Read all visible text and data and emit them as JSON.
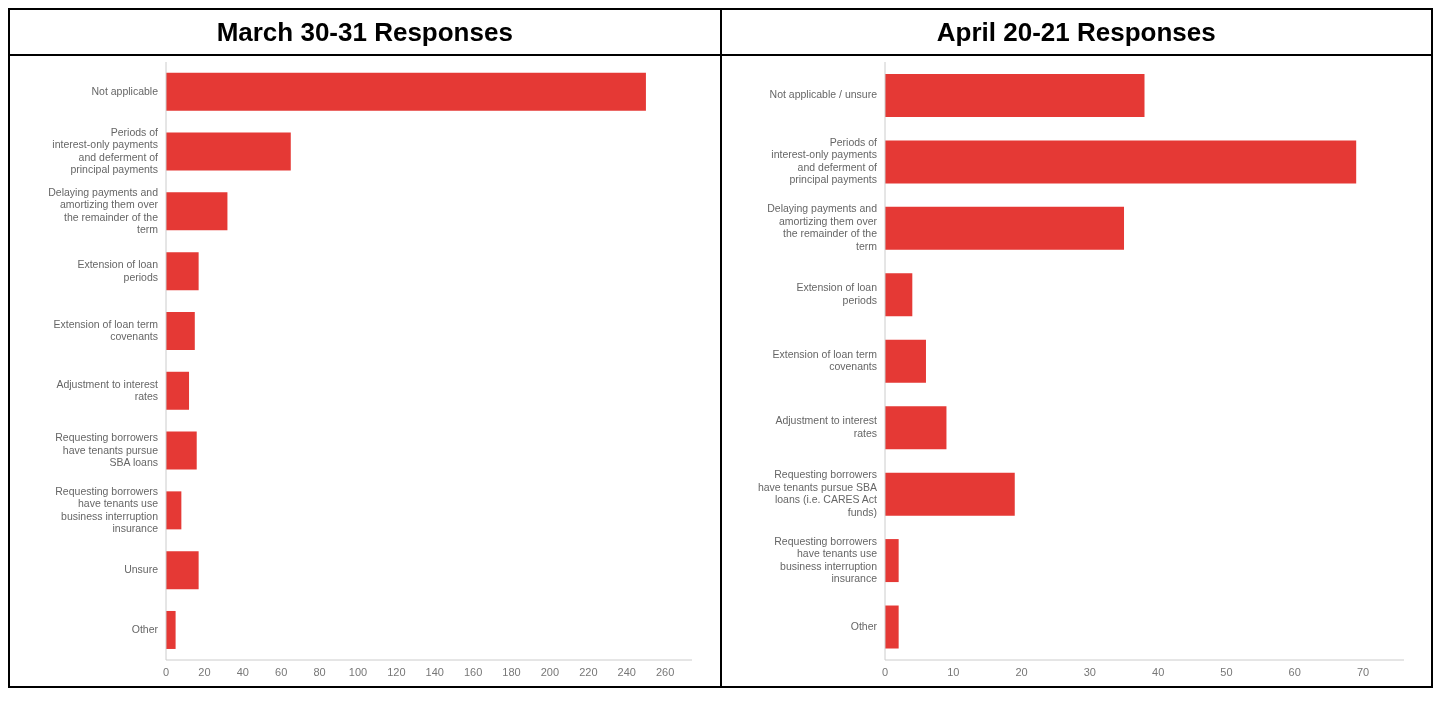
{
  "chart_data": [
    {
      "type": "bar",
      "orientation": "horizontal",
      "title": "March 30-31 Responses",
      "categories": [
        "Not applicable",
        "Periods of interest-only payments and deferment of principal payments",
        "Delaying payments and amortizing them over the remainder of the term",
        "Extension of loan periods",
        "Extension of loan term covenants",
        "Adjustment to interest rates",
        "Requesting borrowers have tenants pursue SBA loans",
        "Requesting borrowers have tenants use business interruption insurance",
        "Unsure",
        "Other"
      ],
      "values": [
        250,
        65,
        32,
        17,
        15,
        12,
        16,
        8,
        17,
        5
      ],
      "color": "#e53935",
      "xlim": [
        0,
        274
      ],
      "xticks": [
        0,
        20,
        40,
        60,
        80,
        100,
        120,
        140,
        160,
        180,
        200,
        220,
        240,
        260
      ],
      "grid": false
    },
    {
      "type": "bar",
      "orientation": "horizontal",
      "title": "April 20-21 Responses",
      "categories": [
        "Not applicable / unsure",
        "Periods of interest-only payments and deferment of principal payments",
        "Delaying payments and amortizing them over the remainder of the term",
        "Extension of loan periods",
        "Extension of loan term covenants",
        "Adjustment to interest rates",
        "Requesting borrowers have tenants pursue SBA loans (i.e. CARES Act funds)",
        "Requesting borrowers have tenants use business interruption insurance",
        "Other"
      ],
      "values": [
        38,
        69,
        35,
        4,
        6,
        9,
        19,
        2,
        2
      ],
      "color": "#e53935",
      "xlim": [
        0,
        76
      ],
      "xticks": [
        0,
        10,
        20,
        30,
        40,
        50,
        60,
        70
      ],
      "grid": false
    }
  ]
}
